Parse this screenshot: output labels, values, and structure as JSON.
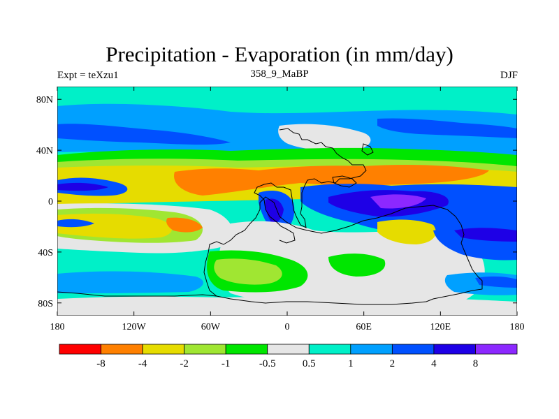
{
  "chart_data": {
    "type": "heatmap",
    "title": "Precipitation - Evaporation (in mm/day)",
    "subtitle_left": "Expt = teXzu1",
    "subtitle_center": "358_9_MaBP",
    "subtitle_right": "DJF",
    "x_ticks": [
      "180",
      "120W",
      "60W",
      "0",
      "60E",
      "120E",
      "180"
    ],
    "y_ticks": [
      "80N",
      "40N",
      "0",
      "40S",
      "80S"
    ],
    "xlim": [
      -180,
      180
    ],
    "ylim": [
      -90,
      90
    ],
    "colorbar": {
      "colors": [
        "#ff0000",
        "#ff8000",
        "#e6dc00",
        "#a0e632",
        "#00e600",
        "#e6e6e6",
        "#00f0c8",
        "#00a0ff",
        "#0050ff",
        "#1e00e6",
        "#8c28ff"
      ],
      "labels": [
        "-8",
        "-4",
        "-2",
        "-1",
        "-0.5",
        "0.5",
        "1",
        "2",
        "4",
        "8"
      ]
    }
  }
}
